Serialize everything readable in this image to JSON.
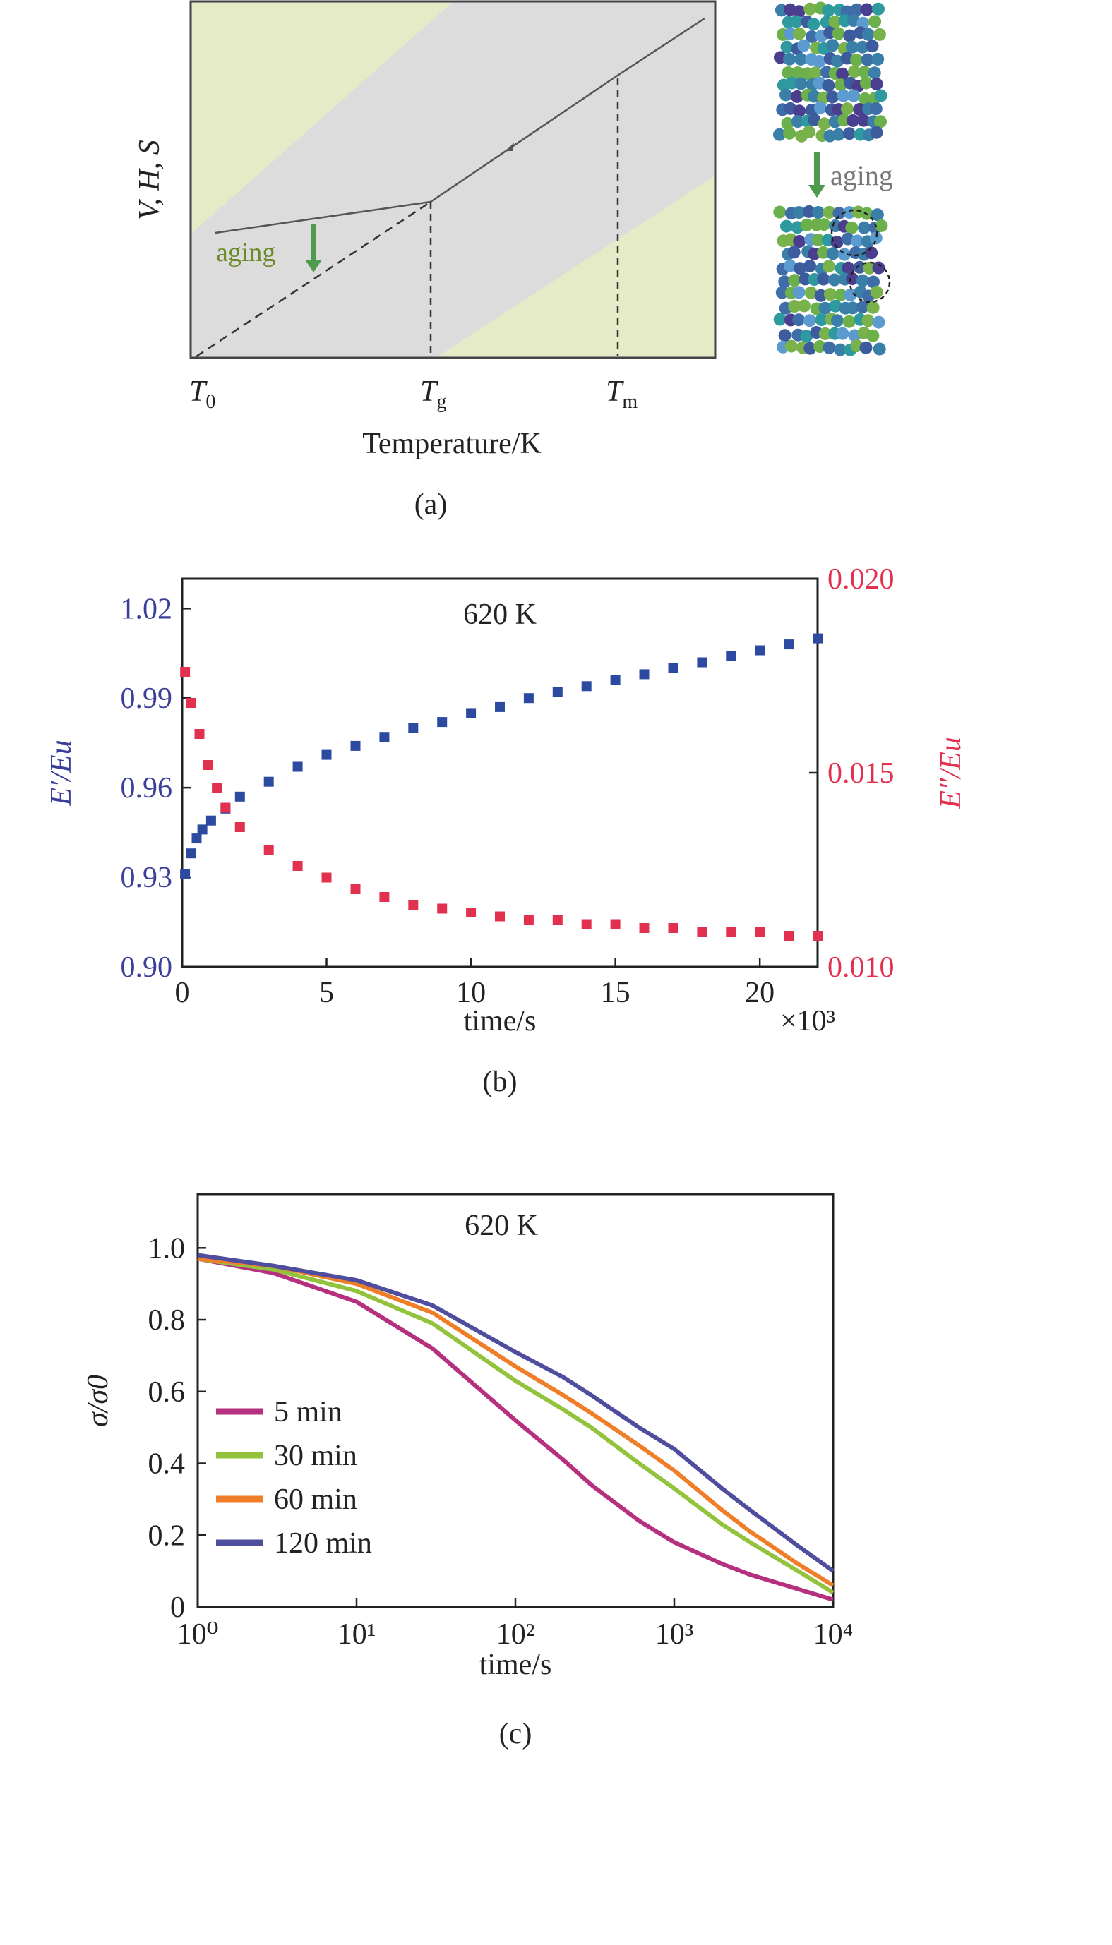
{
  "panels": {
    "a": {
      "caption": "(a)",
      "ylabel": "V, H, S",
      "xlabel": "Temperature/K",
      "ticks": [
        {
          "main": "T",
          "sub": "0"
        },
        {
          "main": "T",
          "sub": "g"
        },
        {
          "main": "T",
          "sub": "m"
        }
      ],
      "aging_label": "aging",
      "aging_label_right": "aging",
      "colors": {
        "panel_bg": "#dcdcdc",
        "highlight": "#e6ecc3",
        "arrow": "#4e9a4e",
        "line": "#555555"
      }
    },
    "b": {
      "caption": "(b)"
    },
    "c": {
      "caption": "(c)"
    }
  },
  "chart_data": [
    {
      "type": "line",
      "panel": "a",
      "xlabel": "Temperature/K",
      "ylabel": "V, H, S",
      "x_ticks": [
        "T0",
        "Tg",
        "Tm"
      ],
      "series": [
        {
          "style": "solid",
          "points": [
            [
              0.06,
              0.3
            ],
            [
              0.46,
              0.42
            ],
            [
              0.81,
              0.81
            ],
            [
              0.98,
              0.98
            ]
          ]
        },
        {
          "style": "dashed",
          "points": [
            [
              0.0,
              0.0
            ],
            [
              0.46,
              0.42
            ]
          ]
        }
      ],
      "annotations": [
        "aging"
      ]
    },
    {
      "type": "scatter",
      "panel": "b",
      "annotation": "620 K",
      "xlabel": "time/s",
      "x_multiplier": "×10³",
      "ylabel_left": "E′/Eu",
      "ylabel_right": "E″/Eu",
      "xlim": [
        0,
        22
      ],
      "ylim_left": [
        0.9,
        1.03
      ],
      "ylim_right": [
        0.01,
        0.02
      ],
      "x_ticks": [
        "0",
        "5",
        "10",
        "15",
        "20"
      ],
      "y_ticks_left": [
        "0.90",
        "0.93",
        "0.96",
        "0.99",
        "1.02"
      ],
      "y_ticks_right": [
        "0.010",
        "0.015",
        "0.020"
      ],
      "series": [
        {
          "axis": "left",
          "color": "#2b4aa0",
          "x": [
            0.1,
            0.3,
            0.5,
            0.7,
            1.0,
            1.5,
            2,
            3,
            4,
            5,
            6,
            7,
            8,
            9,
            10,
            11,
            12,
            13,
            14,
            15,
            16,
            17,
            18,
            19,
            20,
            21,
            22
          ],
          "y": [
            0.931,
            0.938,
            0.943,
            0.946,
            0.949,
            0.953,
            0.957,
            0.962,
            0.967,
            0.971,
            0.974,
            0.977,
            0.98,
            0.982,
            0.985,
            0.987,
            0.99,
            0.992,
            0.994,
            0.996,
            0.998,
            1.0,
            1.002,
            1.004,
            1.006,
            1.008,
            1.01
          ]
        },
        {
          "axis": "right",
          "color": "#e2314f",
          "x": [
            0.1,
            0.3,
            0.6,
            0.9,
            1.2,
            1.5,
            2,
            3,
            4,
            5,
            6,
            7,
            8,
            9,
            10,
            11,
            12,
            13,
            14,
            15,
            16,
            17,
            18,
            19,
            20,
            21,
            22
          ],
          "y": [
            0.0176,
            0.0168,
            0.016,
            0.0152,
            0.0146,
            0.0141,
            0.0136,
            0.013,
            0.0126,
            0.0123,
            0.012,
            0.0118,
            0.0116,
            0.0115,
            0.0114,
            0.0113,
            0.0112,
            0.0112,
            0.0111,
            0.0111,
            0.011,
            0.011,
            0.0109,
            0.0109,
            0.0109,
            0.0108,
            0.0108
          ]
        }
      ]
    },
    {
      "type": "line",
      "panel": "c",
      "annotation": "620 K",
      "xlabel": "time/s",
      "ylabel": "σ/σ0",
      "x_scale": "log",
      "xlim": [
        1,
        10000
      ],
      "ylim": [
        0,
        1.15
      ],
      "x_ticks": [
        "10⁰",
        "10¹",
        "10²",
        "10³",
        "10⁴"
      ],
      "y_ticks": [
        "0",
        "0.2",
        "0.4",
        "0.6",
        "0.8",
        "1.0"
      ],
      "legend": "lower-left",
      "series": [
        {
          "name": "5 min",
          "color": "#b5317f",
          "x": [
            1,
            3,
            10,
            30,
            100,
            200,
            300,
            600,
            1000,
            2000,
            3000,
            6000,
            10000
          ],
          "y": [
            0.97,
            0.93,
            0.85,
            0.72,
            0.52,
            0.41,
            0.34,
            0.24,
            0.18,
            0.12,
            0.09,
            0.05,
            0.02
          ]
        },
        {
          "name": "30 min",
          "color": "#93c23c",
          "x": [
            1,
            3,
            10,
            30,
            100,
            200,
            300,
            600,
            1000,
            2000,
            3000,
            6000,
            10000
          ],
          "y": [
            0.97,
            0.94,
            0.88,
            0.79,
            0.63,
            0.55,
            0.5,
            0.4,
            0.33,
            0.23,
            0.18,
            0.1,
            0.04
          ]
        },
        {
          "name": "60 min",
          "color": "#f07d27",
          "x": [
            1,
            3,
            10,
            30,
            100,
            200,
            300,
            600,
            1000,
            2000,
            3000,
            6000,
            10000
          ],
          "y": [
            0.97,
            0.95,
            0.9,
            0.82,
            0.67,
            0.59,
            0.54,
            0.45,
            0.38,
            0.27,
            0.21,
            0.12,
            0.06
          ]
        },
        {
          "name": "120 min",
          "color": "#4f4d9e",
          "x": [
            1,
            3,
            10,
            30,
            100,
            200,
            300,
            600,
            1000,
            2000,
            3000,
            6000,
            10000
          ],
          "y": [
            0.98,
            0.95,
            0.91,
            0.84,
            0.71,
            0.64,
            0.59,
            0.5,
            0.44,
            0.33,
            0.27,
            0.17,
            0.1
          ]
        }
      ]
    }
  ]
}
